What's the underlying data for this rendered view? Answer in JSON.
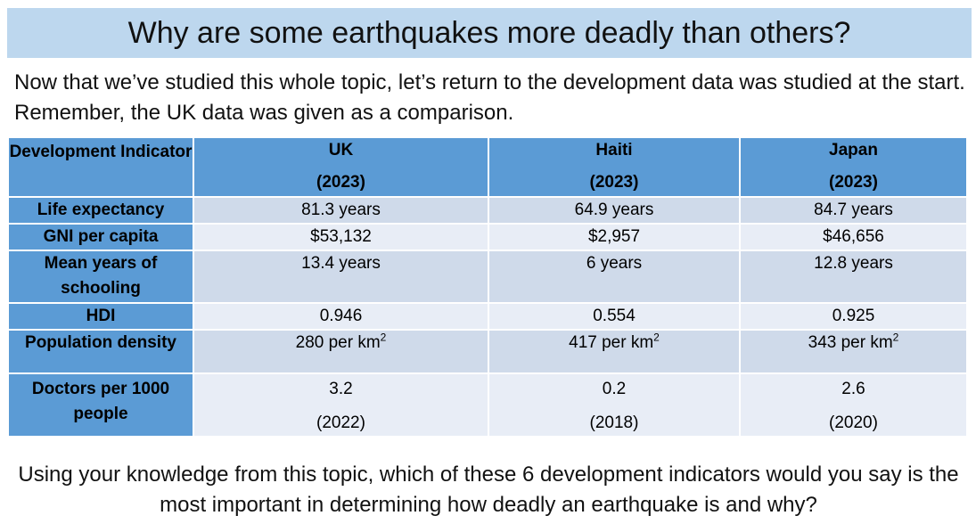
{
  "title": "Why are some earthquakes more deadly than others?",
  "intro": "Now that we’ve studied this whole topic, let’s return to the development data was studied at the start. Remember, the UK data was given as a comparison.",
  "table": {
    "header": {
      "indicator_label": "Development Indicator",
      "countries": [
        {
          "name": "UK",
          "year": "(2023)"
        },
        {
          "name": "Haiti",
          "year": "(2023)"
        },
        {
          "name": "Japan",
          "year": "(2023)"
        }
      ]
    },
    "rows": [
      {
        "label": "Life expectancy",
        "values": [
          "81.3 years",
          "64.9 years",
          "84.7 years"
        ]
      },
      {
        "label": "GNI per capita",
        "values": [
          "$53,132",
          "$2,957",
          "$46,656"
        ]
      },
      {
        "label": "Mean years of schooling",
        "values": [
          "13.4 years",
          "6 years",
          "12.8 years"
        ]
      },
      {
        "label": "HDI",
        "values": [
          "0.946",
          "0.554",
          "0.925"
        ]
      },
      {
        "label": "Population density",
        "values": [
          "280 per km",
          "417 per km",
          "343 per km"
        ],
        "unit_exp": "2"
      },
      {
        "label": "Doctors per 1000 people",
        "values": [
          "3.2",
          "0.2",
          "2.6"
        ],
        "years": [
          "(2022)",
          "(2018)",
          "(2020)"
        ]
      }
    ]
  },
  "question": "Using your knowledge from this topic, which of these 6 development indicators would you say is the most important in determining how deadly an earthquake is and why?"
}
